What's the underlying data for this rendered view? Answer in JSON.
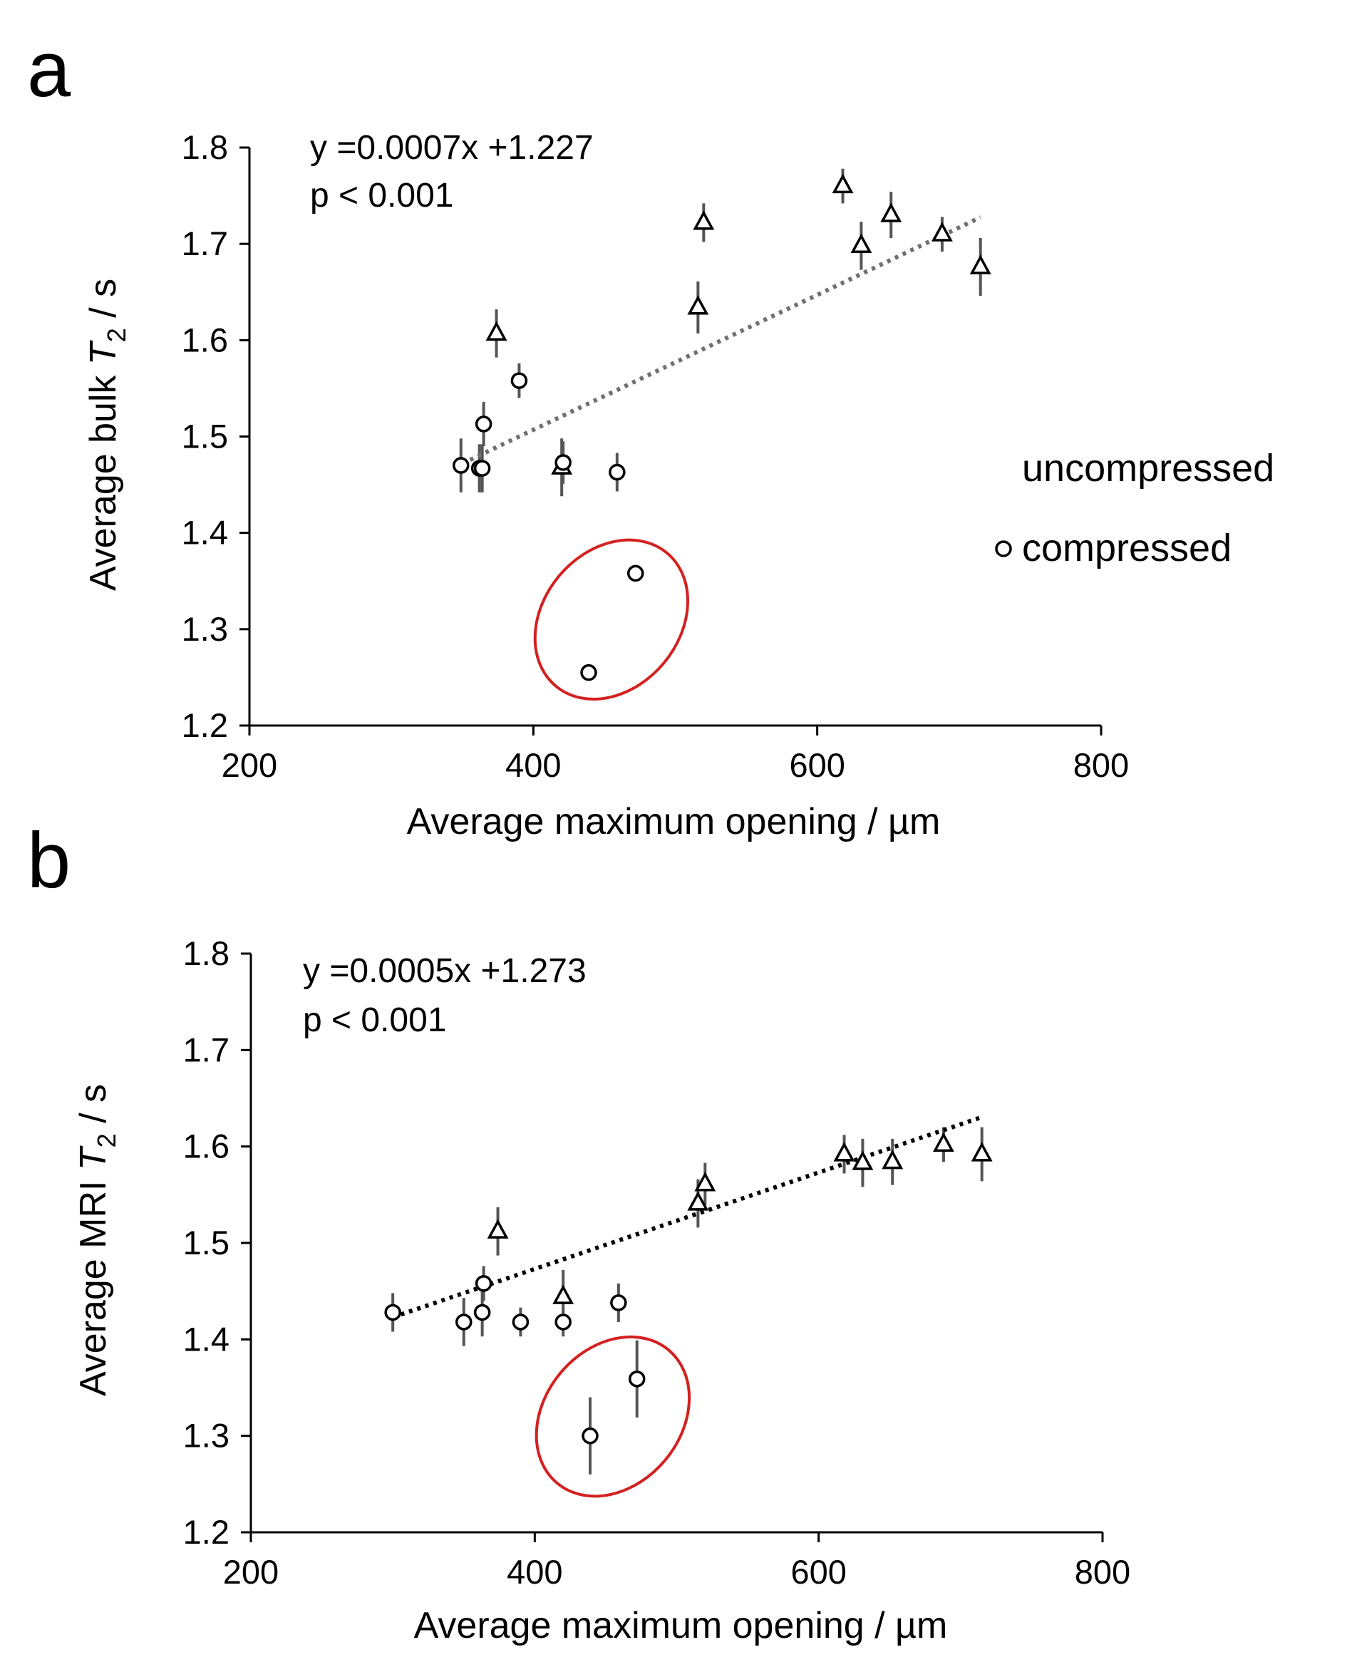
{
  "colors": {
    "axis": "#000000",
    "marker": "#000000",
    "error_bar": "#555555",
    "trend_a": "#707070",
    "trend_b": "#000000",
    "highlight": "#d42020"
  },
  "legend": {
    "items": [
      {
        "label": "uncompressed",
        "marker": "triangle"
      },
      {
        "label": "compressed",
        "marker": "circle"
      }
    ]
  },
  "chart_data": [
    {
      "panel": "a",
      "type": "scatter",
      "title": "",
      "xlabel": "Average maximum opening / µm",
      "ylabel_prefix": "Average bulk ",
      "ylabel_var": "T",
      "ylabel_sub": "2",
      "ylabel_suffix": " / s",
      "xlim": [
        200,
        800
      ],
      "ylim": [
        1.2,
        1.8
      ],
      "xticks": [
        "200",
        "400",
        "600",
        "800"
      ],
      "yticks": [
        "1.2",
        "1.3",
        "1.4",
        "1.5",
        "1.6",
        "1.7",
        "1.8"
      ],
      "annotations": [
        "y =0.0007x +1.227",
        "p < 0.001"
      ],
      "trendline": {
        "slope": 0.0007,
        "intercept": 1.227,
        "x_range": [
          350,
          715
        ]
      },
      "series": [
        {
          "name": "uncompressed",
          "marker": "triangle",
          "x": [
            374,
            420,
            516,
            520,
            618,
            631,
            652,
            688,
            715
          ],
          "y": [
            1.607,
            1.468,
            1.634,
            1.722,
            1.76,
            1.698,
            1.73,
            1.71,
            1.676
          ],
          "err": [
            0.025,
            0.03,
            0.027,
            0.02,
            0.018,
            0.025,
            0.024,
            0.018,
            0.03
          ]
        },
        {
          "name": "compressed",
          "marker": "circle",
          "x": [
            349,
            362,
            364,
            365,
            390,
            421,
            459,
            439,
            472
          ],
          "y": [
            1.47,
            1.467,
            1.467,
            1.513,
            1.558,
            1.473,
            1.463,
            1.255,
            1.358
          ],
          "err": [
            0.028,
            0.025,
            0.025,
            0.023,
            0.018,
            0.022,
            0.02,
            0.0,
            0.0
          ]
        }
      ],
      "highlight": {
        "center": [
          455,
          1.31
        ],
        "rx_data": 48,
        "ry_data": 0.09,
        "rotation_deg": 40
      }
    },
    {
      "panel": "b",
      "type": "scatter",
      "title": "",
      "xlabel": "Average maximum opening / µm",
      "ylabel_prefix": "Average MRI ",
      "ylabel_var": "T",
      "ylabel_sub": "2",
      "ylabel_suffix": " / s",
      "xlim": [
        200,
        800
      ],
      "ylim": [
        1.2,
        1.8
      ],
      "xticks": [
        "200",
        "400",
        "600",
        "800"
      ],
      "yticks": [
        "1.2",
        "1.3",
        "1.4",
        "1.5",
        "1.6",
        "1.7",
        "1.8"
      ],
      "annotations": [
        "y =0.0005x +1.273",
        "p < 0.001"
      ],
      "trendline": {
        "slope": 0.0005,
        "intercept": 1.273,
        "x_range": [
          300,
          715
        ]
      },
      "series": [
        {
          "name": "uncompressed",
          "marker": "triangle",
          "x": [
            374,
            420,
            515,
            520,
            618,
            631,
            652,
            688,
            715
          ],
          "y": [
            1.512,
            1.444,
            1.541,
            1.561,
            1.592,
            1.583,
            1.584,
            1.602,
            1.592
          ],
          "err": [
            0.025,
            0.028,
            0.025,
            0.022,
            0.02,
            0.025,
            0.024,
            0.018,
            0.028
          ]
        },
        {
          "name": "compressed",
          "marker": "circle",
          "x": [
            300,
            350,
            363,
            364,
            390,
            420,
            459,
            439,
            472
          ],
          "y": [
            1.428,
            1.418,
            1.428,
            1.458,
            1.418,
            1.418,
            1.438,
            1.3,
            1.359
          ],
          "err": [
            0.02,
            0.025,
            0.025,
            0.018,
            0.015,
            0.015,
            0.02,
            0.04,
            0.04
          ]
        }
      ],
      "highlight": {
        "center": [
          455,
          1.32
        ],
        "rx_data": 48,
        "ry_data": 0.09,
        "rotation_deg": 40
      }
    }
  ]
}
